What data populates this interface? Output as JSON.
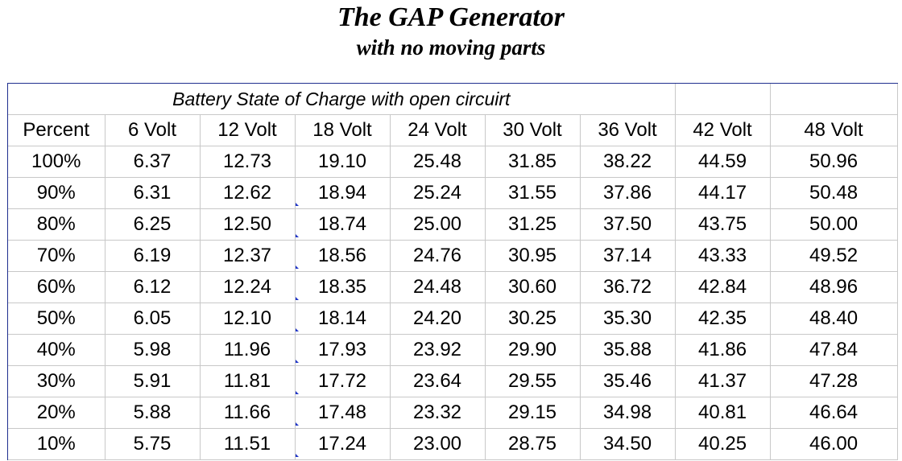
{
  "title": "The GAP Generator",
  "subtitle": "with no moving parts",
  "table": {
    "caption": "Battery State of Charge with open circuirt",
    "headers": [
      "Percent",
      "6 Volt",
      "12 Volt",
      "18 Volt",
      "24 Volt",
      "30 Volt",
      "36 Volt",
      "42 Volt",
      "48 Volt"
    ],
    "rows": [
      [
        "100%",
        "6.37",
        "12.73",
        "19.10",
        "25.48",
        "31.85",
        "38.22",
        "44.59",
        "50.96"
      ],
      [
        "90%",
        "6.31",
        "12.62",
        "18.94",
        "25.24",
        "31.55",
        "37.86",
        "44.17",
        "50.48"
      ],
      [
        "80%",
        "6.25",
        "12.50",
        "18.74",
        "25.00",
        "31.25",
        "37.50",
        "43.75",
        "50.00"
      ],
      [
        "70%",
        "6.19",
        "12.37",
        "18.56",
        "24.76",
        "30.95",
        "37.14",
        "43.33",
        "49.52"
      ],
      [
        "60%",
        "6.12",
        "12.24",
        "18.35",
        "24.48",
        "30.60",
        "36.72",
        "42.84",
        "48.96"
      ],
      [
        "50%",
        "6.05",
        "12.10",
        "18.14",
        "24.20",
        "30.25",
        "35.30",
        "42.35",
        "48.40"
      ],
      [
        "40%",
        "5.98",
        "11.96",
        "17.93",
        "23.92",
        "29.90",
        "35.88",
        "41.86",
        "47.84"
      ],
      [
        "30%",
        "5.91",
        "11.81",
        "17.72",
        "23.64",
        "29.55",
        "35.46",
        "41.37",
        "47.28"
      ],
      [
        "20%",
        "5.88",
        "11.66",
        "17.48",
        "23.32",
        "29.15",
        "34.98",
        "40.81",
        "46.64"
      ],
      [
        "10%",
        "5.75",
        "11.51",
        "17.24",
        "23.00",
        "28.75",
        "34.50",
        "40.25",
        "46.00"
      ]
    ]
  }
}
